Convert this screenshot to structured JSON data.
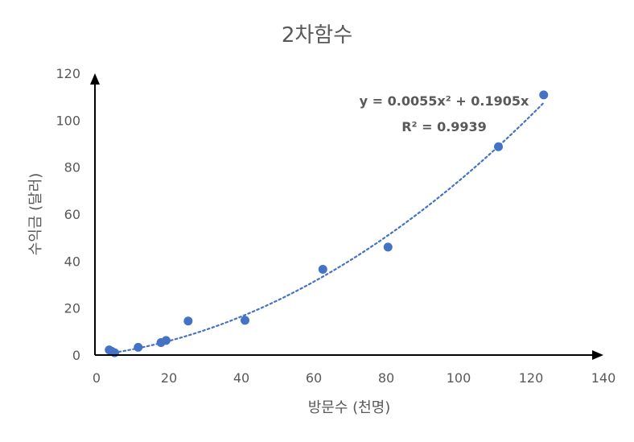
{
  "chart_data": {
    "type": "scatter",
    "title": "2차함수",
    "xlabel": "방문수 (천명)",
    "ylabel": "수익금 (달러)",
    "xlim": [
      0,
      140
    ],
    "ylim": [
      0,
      120
    ],
    "x_ticks": [
      "0",
      "20",
      "40",
      "60",
      "80",
      "100",
      "120",
      "140"
    ],
    "y_ticks": [
      "0",
      "20",
      "40",
      "60",
      "80",
      "100",
      "120"
    ],
    "grid": false,
    "marker_color": "#4472C4",
    "trendline": {
      "type": "polynomial",
      "order": 2,
      "a": 0.0055,
      "b": 0.1905,
      "c": 0,
      "style": "dotted",
      "color": "#4472C4",
      "equation_label": "y = 0.0055x² + 0.1905x",
      "r2_label": "R² = 0.9939"
    },
    "points": [
      {
        "x": 3.5,
        "y": 2.2
      },
      {
        "x": 4.2,
        "y": 1.6
      },
      {
        "x": 5.0,
        "y": 1.0
      },
      {
        "x": 11.5,
        "y": 3.3
      },
      {
        "x": 17.8,
        "y": 5.3
      },
      {
        "x": 19.2,
        "y": 6.2
      },
      {
        "x": 25.3,
        "y": 14.5
      },
      {
        "x": 41.0,
        "y": 14.8
      },
      {
        "x": 62.5,
        "y": 36.5
      },
      {
        "x": 80.5,
        "y": 46.0
      },
      {
        "x": 111.0,
        "y": 88.7
      },
      {
        "x": 123.5,
        "y": 110.8
      }
    ]
  }
}
